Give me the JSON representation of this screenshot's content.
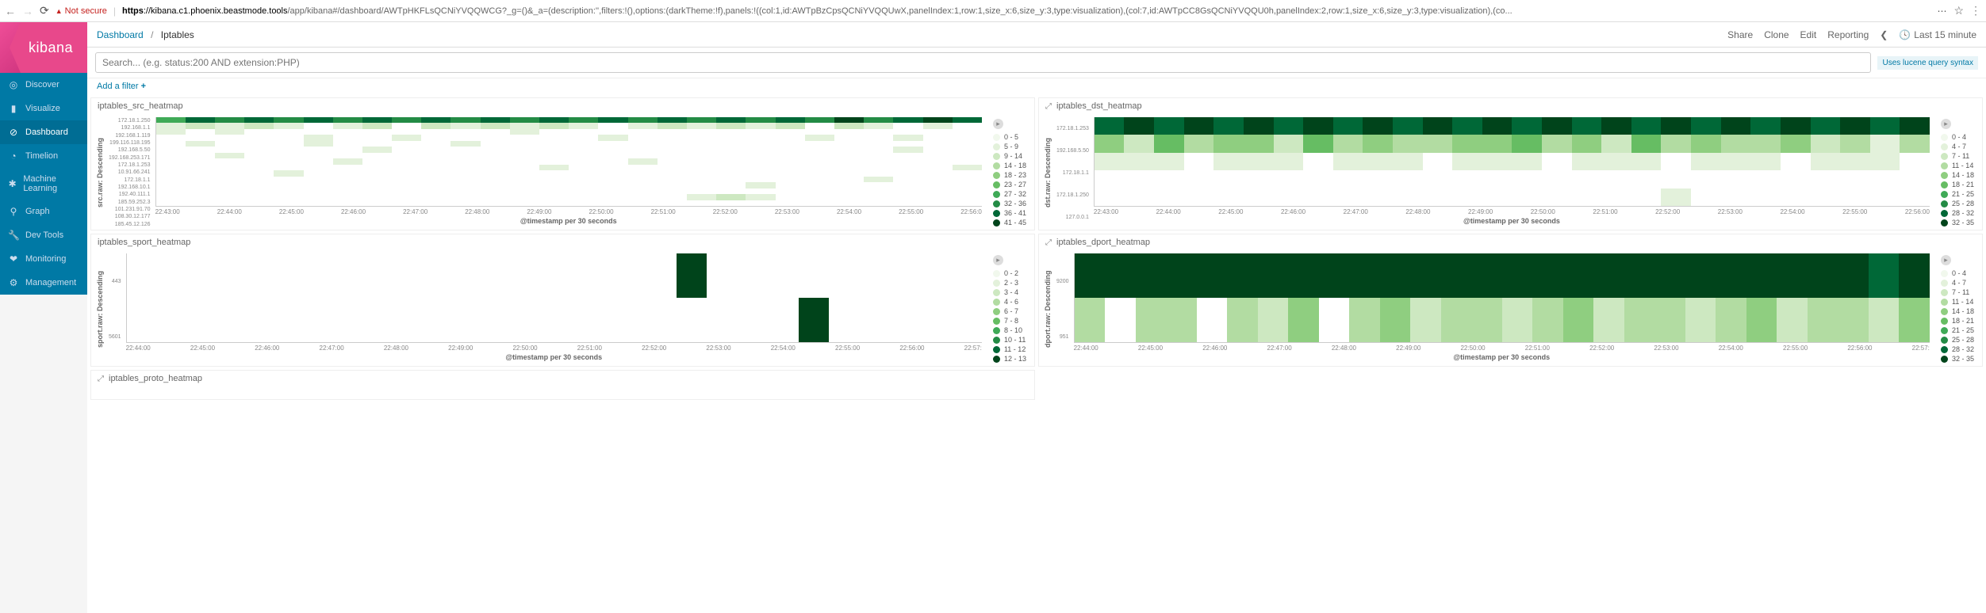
{
  "browser": {
    "insecure_label": "Not secure",
    "url_prefix": "https",
    "url_host": "://kibana.c1.phoenix.beastmode.tools",
    "url_path": "/app/kibana#/dashboard/AWTpHKFLsQCNiYVQQWCG?_g=()&_a=(description:'',filters:!(),options:(darkTheme:!f),panels:!((col:1,id:AWTpBzCpsQCNiYVQQUwX,panelIndex:1,row:1,size_x:6,size_y:3,type:visualization),(col:7,id:AWTpCC8GsQCNiYVQQU0h,panelIndex:2,row:1,size_x:6,size_y:3,type:visualization),(co..."
  },
  "brand": "kibana",
  "sidebar": {
    "items": [
      {
        "icon": "◎",
        "label": "Discover"
      },
      {
        "icon": "▮",
        "label": "Visualize"
      },
      {
        "icon": "⊘",
        "label": "Dashboard",
        "active": true
      },
      {
        "icon": "◔",
        "label": "Timelion"
      },
      {
        "icon": "✱",
        "label": "Machine Learning"
      },
      {
        "icon": "⚲",
        "label": "Graph"
      },
      {
        "icon": "🔧",
        "label": "Dev Tools"
      },
      {
        "icon": "❤",
        "label": "Monitoring"
      },
      {
        "icon": "⚙",
        "label": "Management"
      }
    ]
  },
  "breadcrumb": {
    "root": "Dashboard",
    "current": "Iptables"
  },
  "top_actions": {
    "share": "Share",
    "clone": "Clone",
    "edit": "Edit",
    "reporting": "Reporting",
    "time_label": "Last 15 minute"
  },
  "search": {
    "placeholder": "Search... (e.g. status:200 AND extension:PHP)"
  },
  "lucene_hint": "Uses lucene query syntax",
  "add_filter": "Add a filter",
  "xaxis_label": "@timestamp per 30 seconds",
  "green_scale": [
    "#f1f8ed",
    "#e3f1db",
    "#cde8c1",
    "#b2dca2",
    "#8fce80",
    "#66bd63",
    "#3faa57",
    "#238b45",
    "#006837",
    "#00441b"
  ],
  "panels": {
    "src": {
      "title": "iptables_src_heatmap",
      "ylabel": "src.raw: Descending",
      "yticks": [
        "172.18.1.250",
        "192.168.1.1",
        "192.168.1.119",
        "199.116.118.195",
        "192.168.5.50",
        "192.168.253.171",
        "172.18.1.253",
        "10.91.66.241",
        "172.18.1.1",
        "192.168.10.1",
        "192.40.111.1",
        "185.59.252.3",
        "101.231.91.70",
        "108.30.12.177",
        "185.45.12.126"
      ],
      "xticks": [
        "22:43:00",
        "22:44:00",
        "22:45:00",
        "22:46:00",
        "22:47:00",
        "22:48:00",
        "22:49:00",
        "22:50:00",
        "22:51:00",
        "22:52:00",
        "22:53:00",
        "22:54:00",
        "22:55:00",
        "22:56:0"
      ],
      "legend": [
        "0 - 5",
        "5 - 9",
        "9 - 14",
        "14 - 18",
        "18 - 23",
        "23 - 27",
        "27 - 32",
        "32 - 36",
        "36 - 41",
        "41 - 45"
      ],
      "rows": 15,
      "cols": 28,
      "cells": [
        [
          6,
          8,
          7,
          8,
          7,
          8,
          7,
          8,
          7,
          8,
          7,
          8,
          7,
          8,
          7,
          8,
          7,
          8,
          7,
          8,
          7,
          8,
          7,
          9,
          7,
          8,
          9,
          8
        ],
        [
          1,
          2,
          1,
          2,
          1,
          null,
          1,
          2,
          null,
          2,
          1,
          2,
          1,
          2,
          1,
          null,
          1,
          2,
          1,
          2,
          1,
          2,
          null,
          2,
          1,
          null,
          1,
          null
        ],
        [
          1,
          null,
          1,
          null,
          null,
          null,
          null,
          null,
          null,
          null,
          null,
          null,
          1,
          null,
          null,
          null,
          null,
          null,
          null,
          null,
          null,
          null,
          null,
          null,
          null,
          null,
          null,
          null
        ],
        [
          null,
          null,
          null,
          null,
          null,
          1,
          null,
          null,
          1,
          null,
          null,
          null,
          null,
          null,
          null,
          1,
          null,
          null,
          null,
          null,
          null,
          null,
          1,
          null,
          null,
          1,
          null,
          null
        ],
        [
          null,
          1,
          null,
          null,
          null,
          1,
          null,
          null,
          null,
          null,
          1,
          null,
          null,
          null,
          null,
          null,
          null,
          null,
          null,
          null,
          null,
          null,
          null,
          null,
          null,
          null,
          null,
          null
        ],
        [
          null,
          null,
          null,
          null,
          null,
          null,
          null,
          1,
          null,
          null,
          null,
          null,
          null,
          null,
          null,
          null,
          null,
          null,
          null,
          null,
          null,
          null,
          null,
          null,
          null,
          1,
          null,
          null
        ],
        [
          null,
          null,
          1,
          null,
          null,
          null,
          null,
          null,
          null,
          null,
          null,
          null,
          null,
          null,
          null,
          null,
          null,
          null,
          null,
          null,
          null,
          null,
          null,
          null,
          null,
          null,
          null,
          null
        ],
        [
          null,
          null,
          null,
          null,
          null,
          null,
          1,
          null,
          null,
          null,
          null,
          null,
          null,
          null,
          null,
          null,
          1,
          null,
          null,
          null,
          null,
          null,
          null,
          null,
          null,
          null,
          null,
          null
        ],
        [
          null,
          null,
          null,
          null,
          null,
          null,
          null,
          null,
          null,
          null,
          null,
          null,
          null,
          1,
          null,
          null,
          null,
          null,
          null,
          null,
          null,
          null,
          null,
          null,
          null,
          null,
          null,
          1
        ],
        [
          null,
          null,
          null,
          null,
          1,
          null,
          null,
          null,
          null,
          null,
          null,
          null,
          null,
          null,
          null,
          null,
          null,
          null,
          null,
          null,
          null,
          null,
          null,
          null,
          null,
          null,
          null,
          null
        ],
        [
          null,
          null,
          null,
          null,
          null,
          null,
          null,
          null,
          null,
          null,
          null,
          null,
          null,
          null,
          null,
          null,
          null,
          null,
          null,
          null,
          null,
          null,
          null,
          null,
          1,
          null,
          null,
          null
        ],
        [
          null,
          null,
          null,
          null,
          null,
          null,
          null,
          null,
          null,
          null,
          null,
          null,
          null,
          null,
          null,
          null,
          null,
          null,
          null,
          null,
          1,
          null,
          null,
          null,
          null,
          null,
          null,
          null
        ],
        [
          null,
          null,
          null,
          null,
          null,
          null,
          null,
          null,
          null,
          null,
          null,
          null,
          null,
          null,
          null,
          null,
          null,
          null,
          null,
          null,
          null,
          null,
          null,
          null,
          null,
          null,
          null,
          null
        ],
        [
          null,
          null,
          null,
          null,
          null,
          null,
          null,
          null,
          null,
          null,
          null,
          null,
          null,
          null,
          null,
          null,
          null,
          null,
          1,
          2,
          1,
          null,
          null,
          null,
          null,
          null,
          null,
          null
        ],
        [
          null,
          null,
          null,
          null,
          null,
          null,
          null,
          null,
          null,
          null,
          null,
          null,
          null,
          null,
          null,
          null,
          null,
          null,
          null,
          null,
          null,
          null,
          null,
          null,
          null,
          null,
          null,
          null
        ]
      ]
    },
    "dst": {
      "title": "iptables_dst_heatmap",
      "ylabel": "dst.raw: Descending",
      "yticks": [
        "172.18.1.253",
        "192.168.5.50",
        "172.18.1.1",
        "172.18.1.250",
        "127.0.0.1"
      ],
      "xticks": [
        "22:43:00",
        "22:44:00",
        "22:45:00",
        "22:46:00",
        "22:47:00",
        "22:48:00",
        "22:49:00",
        "22:50:00",
        "22:51:00",
        "22:52:00",
        "22:53:00",
        "22:54:00",
        "22:55:00",
        "22:56:00"
      ],
      "legend": [
        "0 - 4",
        "4 - 7",
        "7 - 11",
        "11 - 14",
        "14 - 18",
        "18 - 21",
        "21 - 25",
        "25 - 28",
        "28 - 32",
        "32 - 35"
      ],
      "rows": 5,
      "cols": 28,
      "cells": [
        [
          8,
          9,
          8,
          9,
          8,
          9,
          8,
          9,
          8,
          9,
          8,
          9,
          8,
          9,
          8,
          9,
          8,
          9,
          8,
          9,
          8,
          9,
          8,
          9,
          8,
          9,
          8,
          9
        ],
        [
          4,
          2,
          5,
          3,
          4,
          4,
          2,
          5,
          3,
          4,
          3,
          3,
          4,
          4,
          5,
          3,
          4,
          2,
          5,
          3,
          4,
          3,
          3,
          4,
          2,
          3,
          1,
          3
        ],
        [
          1,
          1,
          1,
          null,
          1,
          1,
          1,
          null,
          1,
          1,
          1,
          null,
          1,
          1,
          1,
          null,
          1,
          1,
          1,
          null,
          1,
          1,
          1,
          null,
          1,
          1,
          1,
          null
        ],
        [
          null,
          null,
          null,
          null,
          null,
          null,
          null,
          null,
          null,
          null,
          null,
          null,
          null,
          null,
          null,
          null,
          null,
          null,
          null,
          null,
          null,
          null,
          null,
          null,
          null,
          null,
          null,
          null
        ],
        [
          null,
          null,
          null,
          null,
          null,
          null,
          null,
          null,
          null,
          null,
          null,
          null,
          null,
          null,
          null,
          null,
          null,
          null,
          null,
          1,
          null,
          null,
          null,
          null,
          null,
          null,
          null,
          null
        ]
      ]
    },
    "sport": {
      "title": "iptables_sport_heatmap",
      "ylabel": "sport.raw: Descending",
      "yticks": [
        "443",
        "5601"
      ],
      "xticks": [
        "22:44:00",
        "22:45:00",
        "22:46:00",
        "22:47:00",
        "22:48:00",
        "22:49:00",
        "22:50:00",
        "22:51:00",
        "22:52:00",
        "22:53:00",
        "22:54:00",
        "22:55:00",
        "22:56:00",
        "22:57:"
      ],
      "legend": [
        "0 - 2",
        "2 - 3",
        "3 - 4",
        "4 - 6",
        "6 - 7",
        "7 - 8",
        "8 - 10",
        "10 - 11",
        "11 - 12",
        "12 - 13"
      ],
      "rows": 2,
      "cols": 28,
      "cells": [
        [
          null,
          null,
          null,
          null,
          null,
          null,
          null,
          null,
          null,
          null,
          null,
          null,
          null,
          null,
          null,
          null,
          null,
          null,
          9,
          null,
          null,
          null,
          null,
          null,
          null,
          null,
          null,
          null
        ],
        [
          null,
          null,
          null,
          null,
          null,
          null,
          null,
          null,
          null,
          null,
          null,
          null,
          null,
          null,
          null,
          null,
          null,
          null,
          null,
          null,
          null,
          null,
          9,
          null,
          null,
          null,
          null,
          null
        ]
      ]
    },
    "dport": {
      "title": "iptables_dport_heatmap",
      "ylabel": "dport.raw: Descending",
      "yticks": [
        "9200",
        "951"
      ],
      "xticks": [
        "22:44:00",
        "22:45:00",
        "22:46:00",
        "22:47:00",
        "22:48:00",
        "22:49:00",
        "22:50:00",
        "22:51:00",
        "22:52:00",
        "22:53:00",
        "22:54:00",
        "22:55:00",
        "22:56:00",
        "22:57:"
      ],
      "legend": [
        "0 - 4",
        "4 - 7",
        "7 - 11",
        "11 - 14",
        "14 - 18",
        "18 - 21",
        "21 - 25",
        "25 - 28",
        "28 - 32",
        "32 - 35"
      ],
      "rows": 2,
      "cols": 28,
      "cells": [
        [
          9,
          9,
          9,
          9,
          9,
          9,
          9,
          9,
          9,
          9,
          9,
          9,
          9,
          9,
          9,
          9,
          9,
          9,
          9,
          9,
          9,
          9,
          9,
          9,
          9,
          9,
          8,
          9
        ],
        [
          3,
          null,
          3,
          3,
          null,
          3,
          2,
          4,
          null,
          3,
          4,
          2,
          3,
          3,
          2,
          3,
          4,
          2,
          3,
          3,
          2,
          3,
          4,
          2,
          3,
          3,
          2,
          4
        ]
      ]
    },
    "proto": {
      "title": "iptables_proto_heatmap"
    }
  }
}
